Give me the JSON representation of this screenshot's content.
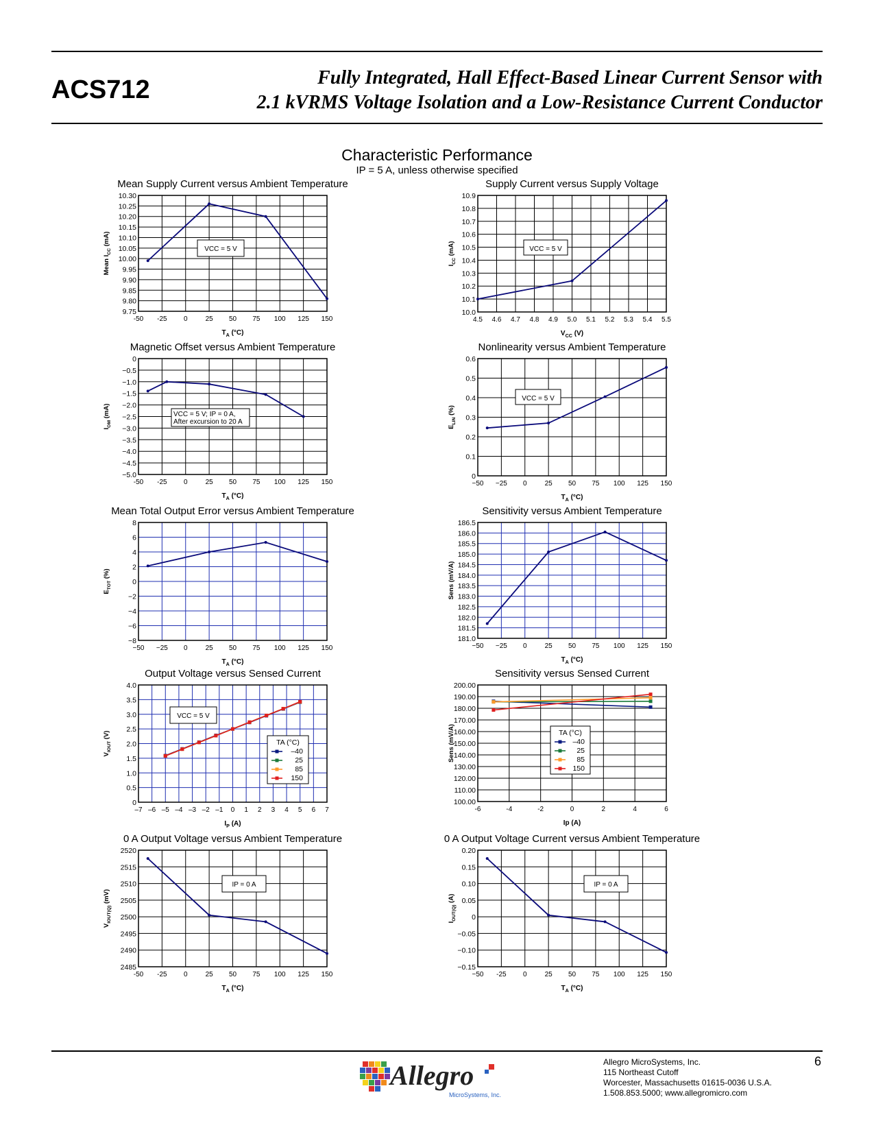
{
  "header": {
    "part_number": "ACS712",
    "title_line1": "Fully Integrated, Hall Effect-Based Linear Current Sensor with",
    "title_line2": "2.1 kVRMS Voltage Isolation and a Low-Resistance Current Conductor"
  },
  "section": {
    "title": "Characteristic Performance",
    "subtitle": "IP = 5 A, unless otherwise specified"
  },
  "colors": {
    "line": "#0a0a7a",
    "black_grid": "#000000",
    "blue_grid": "#1f2fb0",
    "t_neg40": "#0a1a80",
    "t_25": "#1a7a3a",
    "t_85": "#ff9a2a",
    "t_150": "#e02020"
  },
  "chart_data": [
    {
      "type": "line",
      "title": "Mean Supply Current versus Ambient Temperature",
      "xlabel": "TA (°C)",
      "ylabel": "Mean ICC (mA)",
      "xlim": [
        -50,
        150
      ],
      "ylim": [
        9.75,
        10.3
      ],
      "x_ticks": [
        "-50",
        "-25",
        "0",
        "25",
        "50",
        "75",
        "100",
        "125",
        "150"
      ],
      "y_ticks": [
        "9.75",
        "9.80",
        "9.85",
        "9.90",
        "9.95",
        "10.00",
        "10.05",
        "10.10",
        "10.15",
        "10.20",
        "10.25",
        "10.30"
      ],
      "series": [
        {
          "name": "ICC",
          "x": [
            -40,
            25,
            85,
            150
          ],
          "y": [
            9.99,
            10.26,
            10.2,
            9.81
          ]
        }
      ],
      "annotation": "VCC = 5 V"
    },
    {
      "type": "line",
      "title": "Supply Current versus Supply Voltage",
      "xlabel": "VCC (V)",
      "ylabel": "ICC (mA)",
      "xlim": [
        4.5,
        5.5
      ],
      "ylim": [
        10.0,
        10.9
      ],
      "x_ticks": [
        "4.5",
        "4.6",
        "4.7",
        "4.8",
        "4.9",
        "5.0",
        "5.1",
        "5.2",
        "5.3",
        "5.4",
        "5.5"
      ],
      "y_ticks": [
        "10.0",
        "10.1",
        "10.2",
        "10.3",
        "10.4",
        "10.5",
        "10.6",
        "10.7",
        "10.8",
        "10.9"
      ],
      "series": [
        {
          "name": "ICC",
          "x": [
            4.5,
            5.0,
            5.5
          ],
          "y": [
            10.1,
            10.24,
            10.86
          ]
        }
      ],
      "annotation": "VCC = 5 V"
    },
    {
      "type": "line",
      "title": "Magnetic Offset versus Ambient Temperature",
      "xlabel": "TA (°C)",
      "ylabel": "IOM (mA)",
      "xlim": [
        -50,
        150
      ],
      "ylim": [
        -5.0,
        0
      ],
      "x_ticks": [
        "-50",
        "-25",
        "0",
        "25",
        "50",
        "75",
        "100",
        "125",
        "150"
      ],
      "y_ticks": [
        "−5.0",
        "−4.5",
        "−4.0",
        "−3.5",
        "−3.0",
        "−2.5",
        "−2.0",
        "−1.5",
        "−1.0",
        "−0.5",
        "0"
      ],
      "series": [
        {
          "name": "IOM",
          "x": [
            -40,
            -20,
            25,
            85,
            125
          ],
          "y": [
            -1.4,
            -1.0,
            -1.1,
            -1.55,
            -2.5
          ]
        }
      ],
      "annotation": "VCC = 5 V; IP = 0 A,|After excursion to 20 A"
    },
    {
      "type": "line",
      "title": "Nonlinearity versus Ambient Temperature",
      "xlabel": "TA (°C)",
      "ylabel": "ELIN (%)",
      "xlim": [
        -50,
        150
      ],
      "ylim": [
        0,
        0.6
      ],
      "x_ticks": [
        "−50",
        "−25",
        "0",
        "25",
        "50",
        "75",
        "100",
        "125",
        "150"
      ],
      "y_ticks": [
        "0",
        "0.1",
        "0.2",
        "0.3",
        "0.4",
        "0.5",
        "0.6"
      ],
      "series": [
        {
          "name": "ELIN",
          "x": [
            -40,
            25,
            85,
            150
          ],
          "y": [
            0.245,
            0.27,
            0.405,
            0.555
          ]
        }
      ],
      "annotation": "VCC = 5 V"
    },
    {
      "type": "line",
      "title": "Mean Total Output Error versus Ambient Temperature",
      "xlabel": "TA (°C)",
      "ylabel": "ETOT (%)",
      "xlim": [
        -50,
        150
      ],
      "ylim": [
        -8,
        8
      ],
      "x_ticks": [
        "−50",
        "−25",
        "0",
        "25",
        "50",
        "75",
        "100",
        "125",
        "150"
      ],
      "y_ticks": [
        "−8",
        "−6",
        "−4",
        "−2",
        "0",
        "2",
        "4",
        "6",
        "8"
      ],
      "series": [
        {
          "name": "ETOT",
          "x": [
            -40,
            25,
            85,
            150
          ],
          "y": [
            2.1,
            4.0,
            5.3,
            2.7
          ]
        }
      ]
    },
    {
      "type": "line",
      "title": "Sensitivity versus Ambient Temperature",
      "xlabel": "TA (°C)",
      "ylabel": "Sens (mV/A)",
      "xlim": [
        -50,
        150
      ],
      "ylim": [
        181.0,
        186.5
      ],
      "x_ticks": [
        "−50",
        "−25",
        "0",
        "25",
        "50",
        "75",
        "100",
        "125",
        "150"
      ],
      "y_ticks": [
        "181.0",
        "181.5",
        "182.0",
        "182.5",
        "183.0",
        "183.5",
        "184.0",
        "184.5",
        "185.0",
        "185.5",
        "186.0",
        "186.5"
      ],
      "series": [
        {
          "name": "Sens",
          "x": [
            -40,
            25,
            85,
            150
          ],
          "y": [
            181.7,
            185.1,
            186.05,
            184.7
          ]
        }
      ]
    },
    {
      "type": "line",
      "title": "Output Voltage versus Sensed Current",
      "xlabel": "IP (A)",
      "ylabel": "VIOUT (V)",
      "xlim": [
        -7,
        7
      ],
      "ylim": [
        0,
        4.0
      ],
      "x_ticks": [
        "–7",
        "–6",
        "–5",
        "–4",
        "–3",
        "–2",
        "–1",
        "0",
        "1",
        "2",
        "3",
        "4",
        "5",
        "6",
        "7"
      ],
      "y_ticks": [
        "0",
        "0.5",
        "1.0",
        "1.5",
        "2.0",
        "2.5",
        "3.0",
        "3.5",
        "4.0"
      ],
      "series": [
        {
          "name": "–40",
          "x": [
            -5,
            -3.75,
            -2.5,
            -1.25,
            0,
            1.25,
            2.5,
            3.75,
            5
          ],
          "y": [
            1.59,
            1.82,
            2.05,
            2.28,
            2.5,
            2.72,
            2.95,
            3.18,
            3.41
          ]
        },
        {
          "name": "25",
          "x": [
            -5,
            -3.75,
            -2.5,
            -1.25,
            0,
            1.25,
            2.5,
            3.75,
            5
          ],
          "y": [
            1.58,
            1.81,
            2.04,
            2.27,
            2.5,
            2.73,
            2.96,
            3.19,
            3.42
          ]
        },
        {
          "name": "85",
          "x": [
            -5,
            -3.75,
            -2.5,
            -1.25,
            0,
            1.25,
            2.5,
            3.75,
            5
          ],
          "y": [
            1.58,
            1.81,
            2.04,
            2.27,
            2.5,
            2.73,
            2.96,
            3.19,
            3.42
          ]
        },
        {
          "name": "150",
          "x": [
            -5,
            -3.75,
            -2.5,
            -1.25,
            0,
            1.25,
            2.5,
            3.75,
            5
          ],
          "y": [
            1.58,
            1.81,
            2.04,
            2.27,
            2.5,
            2.73,
            2.96,
            3.19,
            3.43
          ]
        }
      ],
      "annotation": "VCC = 5 V",
      "legend_title": "TA (°C)"
    },
    {
      "type": "line",
      "title": "Sensitivity versus Sensed Current",
      "xlabel": "Ip (A)",
      "ylabel": "Sens (mV/A)",
      "xlim": [
        -6,
        6
      ],
      "ylim": [
        100,
        200
      ],
      "x_ticks": [
        "-6",
        "-4",
        "-2",
        "0",
        "2",
        "4",
        "6"
      ],
      "y_ticks": [
        "100.00",
        "110.00",
        "120.00",
        "130.00",
        "140.00",
        "150.00",
        "160.00",
        "170.00",
        "180.00",
        "190.00",
        "200.00"
      ],
      "series": [
        {
          "name": "–40",
          "x": [
            -5,
            5
          ],
          "y": [
            186,
            181
          ]
        },
        {
          "name": "25",
          "x": [
            -5,
            5
          ],
          "y": [
            185.5,
            186
          ]
        },
        {
          "name": "85",
          "x": [
            -5,
            5
          ],
          "y": [
            185.5,
            189
          ]
        },
        {
          "name": "150",
          "x": [
            -5,
            5
          ],
          "y": [
            178.5,
            192
          ]
        }
      ],
      "legend_title": "TA (°C)"
    },
    {
      "type": "line",
      "title": "0 A Output Voltage versus Ambient Temperature",
      "xlabel": "TA (°C)",
      "ylabel": "VIOUT(Q) (mV)",
      "xlim": [
        -50,
        150
      ],
      "ylim": [
        2485,
        2520
      ],
      "x_ticks": [
        "-50",
        "-25",
        "0",
        "25",
        "50",
        "75",
        "100",
        "125",
        "150"
      ],
      "y_ticks": [
        "2485",
        "2490",
        "2495",
        "2500",
        "2505",
        "2510",
        "2515",
        "2520"
      ],
      "series": [
        {
          "name": "VIOUT(Q)",
          "x": [
            -40,
            25,
            85,
            150
          ],
          "y": [
            2517.5,
            2500.5,
            2498.5,
            2489
          ]
        }
      ],
      "annotation": "IP = 0 A"
    },
    {
      "type": "line",
      "title": "0 A Output Voltage Current versus Ambient Temperature",
      "xlabel": "TA (°C)",
      "ylabel": "IOUT(Q) (A)",
      "xlim": [
        -50,
        150
      ],
      "ylim": [
        -0.15,
        0.2
      ],
      "x_ticks": [
        "−50",
        "-25",
        "0",
        "25",
        "50",
        "75",
        "100",
        "125",
        "150"
      ],
      "y_ticks": [
        "−0.15",
        "−0.10",
        "−0.05",
        "0",
        "0.05",
        "0.10",
        "0.15",
        "0.20"
      ],
      "series": [
        {
          "name": "IOUT(Q)",
          "x": [
            -40,
            25,
            85,
            150
          ],
          "y": [
            0.175,
            0.005,
            -0.015,
            -0.107
          ]
        }
      ],
      "annotation": "IP = 0 A"
    }
  ],
  "footer": {
    "logo_text": "Allegro",
    "logo_sub": "MicroSystems, Inc.",
    "company": "Allegro MicroSystems, Inc.",
    "address1": "115 Northeast Cutoff",
    "address2": "Worcester, Massachusetts 01615-0036 U.S.A.",
    "contact": "1.508.853.5000; www.allegromicro.com",
    "page_number": "6"
  }
}
